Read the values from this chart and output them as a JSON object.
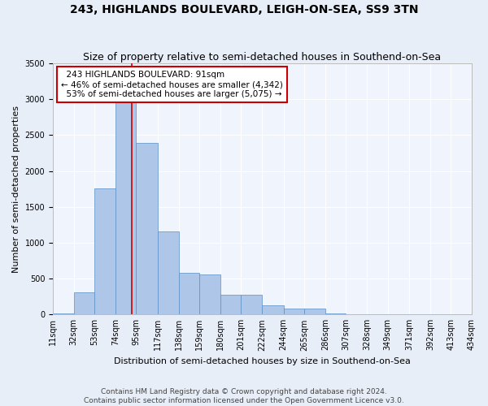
{
  "title": "243, HIGHLANDS BOULEVARD, LEIGH-ON-SEA, SS9 3TN",
  "subtitle": "Size of property relative to semi-detached houses in Southend-on-Sea",
  "xlabel": "Distribution of semi-detached houses by size in Southend-on-Sea",
  "ylabel": "Number of semi-detached properties",
  "footer_line1": "Contains HM Land Registry data © Crown copyright and database right 2024.",
  "footer_line2": "Contains public sector information licensed under the Open Government Licence v3.0.",
  "bins": [
    11,
    32,
    53,
    74,
    95,
    117,
    138,
    159,
    180,
    201,
    222,
    244,
    265,
    286,
    307,
    328,
    349,
    371,
    392,
    413,
    434
  ],
  "bar_labels": [
    "11sqm",
    "32sqm",
    "53sqm",
    "74sqm",
    "95sqm",
    "117sqm",
    "138sqm",
    "159sqm",
    "180sqm",
    "201sqm",
    "222sqm",
    "244sqm",
    "265sqm",
    "286sqm",
    "307sqm",
    "328sqm",
    "349sqm",
    "371sqm",
    "392sqm",
    "413sqm",
    "434sqm"
  ],
  "bar_heights": [
    10,
    310,
    1760,
    3050,
    2390,
    1160,
    580,
    560,
    280,
    270,
    130,
    85,
    80,
    20,
    5,
    5,
    5,
    5,
    5,
    5
  ],
  "bar_color": "#aec6e8",
  "bar_edge_color": "#5a8fc4",
  "subject_value": 91,
  "subject_label": "243 HIGHLANDS BOULEVARD: 91sqm",
  "pct_smaller": 46,
  "n_smaller": 4342,
  "pct_larger": 53,
  "n_larger": 5075,
  "vline_color": "#cc0000",
  "annotation_box_color": "#cc0000",
  "ylim": [
    0,
    3500
  ],
  "yticks": [
    0,
    500,
    1000,
    1500,
    2000,
    2500,
    3000,
    3500
  ],
  "bg_color": "#e8eef8",
  "plot_bg_color": "#f0f4fc",
  "grid_color": "#ffffff",
  "title_fontsize": 10,
  "subtitle_fontsize": 9,
  "axis_label_fontsize": 8,
  "tick_fontsize": 7,
  "annotation_fontsize": 7.5,
  "footer_fontsize": 6.5
}
